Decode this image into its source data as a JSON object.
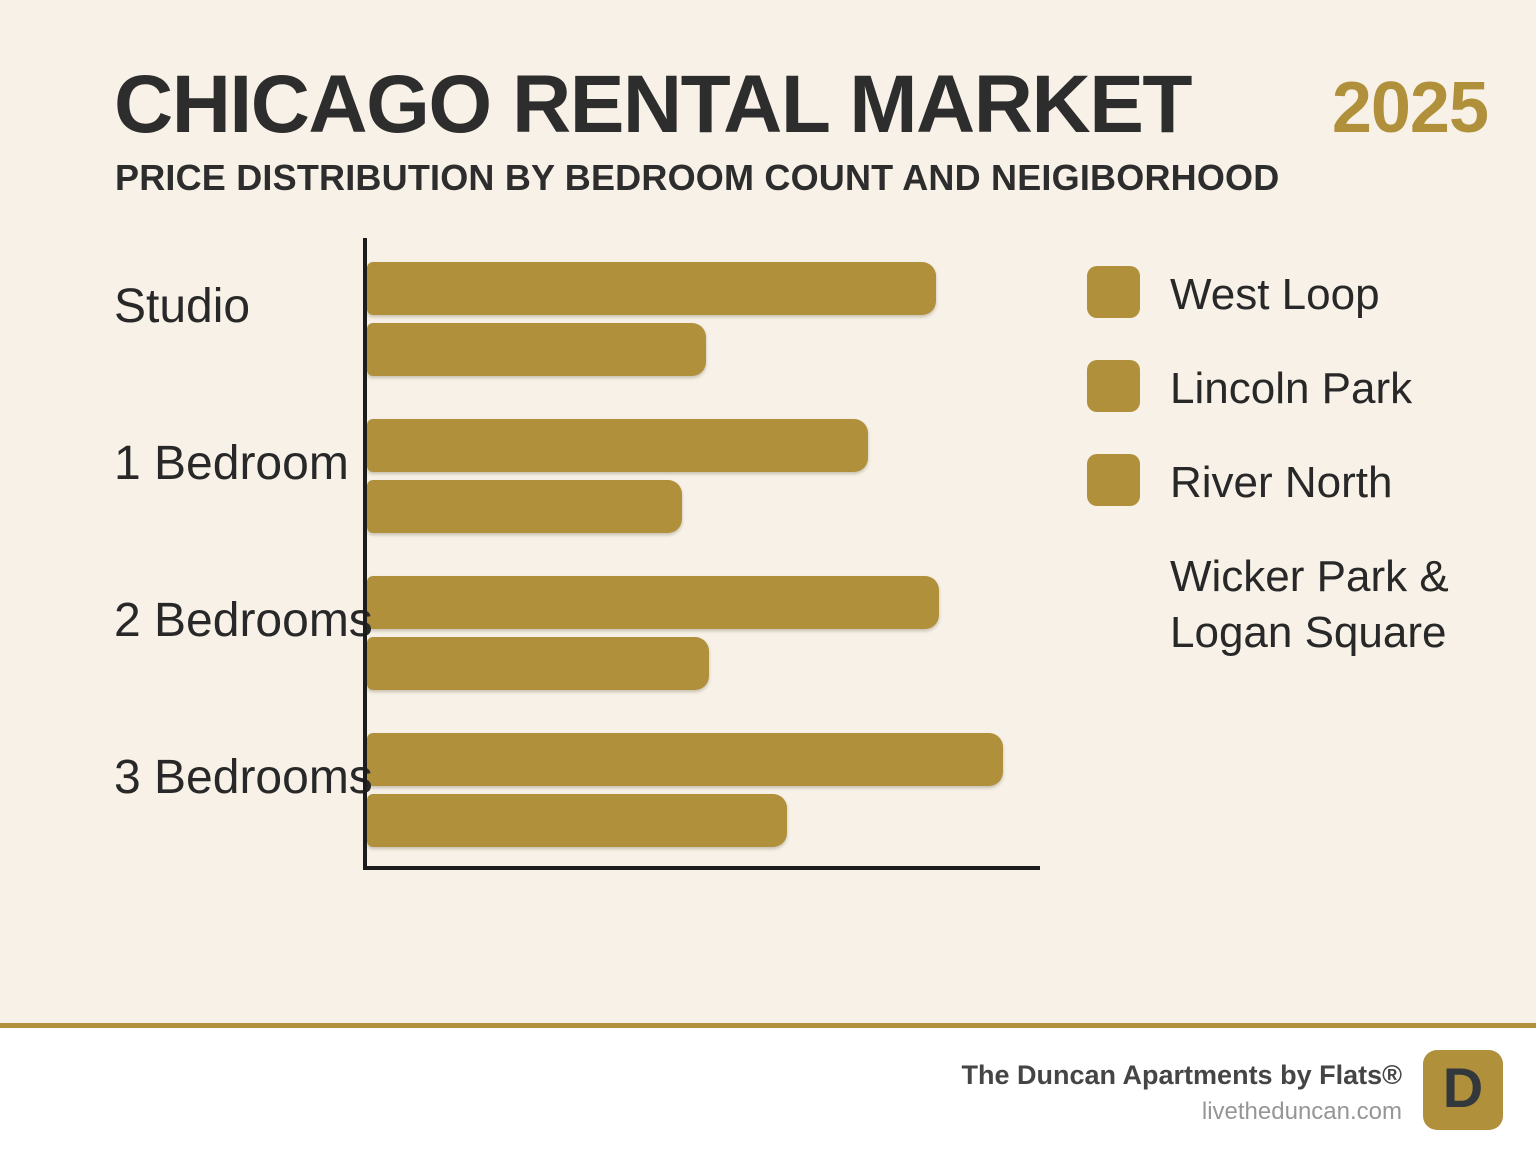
{
  "header": {
    "title": "CHICAGO RENTAL MARKET",
    "year": "2025",
    "subtitle": "PRICE DISTRIBUTION BY BEDROOM COUNT AND NEIGIBORHOOD"
  },
  "colors": {
    "gold": "#B1903C",
    "background": "#F7F1E7",
    "ink": "#2D2D2D",
    "axis": "#1C1C1C",
    "footer_background": "#FFFFFF"
  },
  "chart_data": {
    "type": "bar",
    "orientation": "horizontal",
    "title": "Chicago Rental Market 2025 — Price Distribution by Bedroom Count and Neighborhood",
    "categories": [
      "Studio",
      "1 Bedroom",
      "2 Bedrooms",
      "3 Bedrooms"
    ],
    "series": [
      {
        "name": "West Loop",
        "values_pct": [
          84,
          74,
          84.5,
          94
        ]
      },
      {
        "name": "Lincoln Park",
        "values_pct": [
          50,
          46.5,
          50.5,
          62
        ]
      }
    ],
    "value_axis_note": "No numeric tick labels or gridlines are shown; values are relative bar lengths as percent of the visible x-axis (0-100).",
    "xlabel": "",
    "ylabel": "",
    "grid": "off",
    "legend_position": "right",
    "legend_entries": [
      "West Loop",
      "Lincoln Park",
      "River North",
      "Wicker Park & Logan Square"
    ],
    "bar_color": "#B1903C"
  },
  "legend": {
    "items": [
      {
        "label": "West Loop",
        "swatch": true
      },
      {
        "label": "Lincoln Park",
        "swatch": true
      },
      {
        "label": "River North",
        "swatch": true
      },
      {
        "label": "Wicker Park &\nLogan Square",
        "swatch": false
      }
    ]
  },
  "footer": {
    "brand": "The Duncan Apartments by Flats®",
    "url": "livetheduncan.com",
    "logo_letter": "D"
  }
}
